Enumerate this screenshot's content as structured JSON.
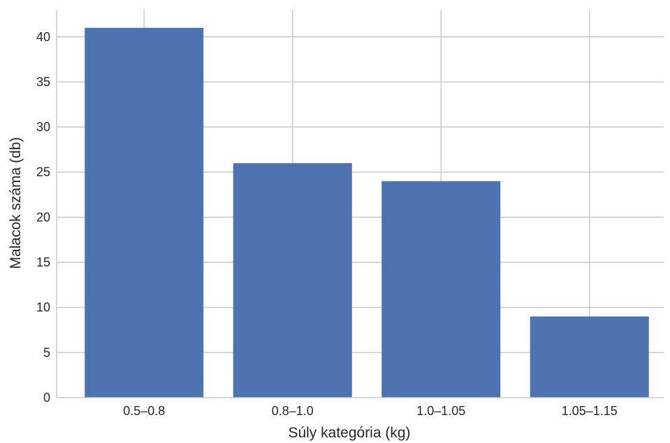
{
  "chart_data": {
    "type": "bar",
    "categories": [
      "0.5–0.8",
      "0.8–1.0",
      "1.0–1.05",
      "1.05–1.15"
    ],
    "values": [
      41,
      26,
      24,
      9
    ],
    "title": "",
    "xlabel": "Súly kategória (kg)",
    "ylabel": "Malacok száma (db)",
    "ylim": [
      0,
      43
    ],
    "yticks": [
      0,
      5,
      10,
      15,
      20,
      25,
      30,
      35,
      40
    ],
    "grid": true,
    "colors": {
      "bar": "#4c72b0",
      "grid": "#cccccc"
    }
  }
}
